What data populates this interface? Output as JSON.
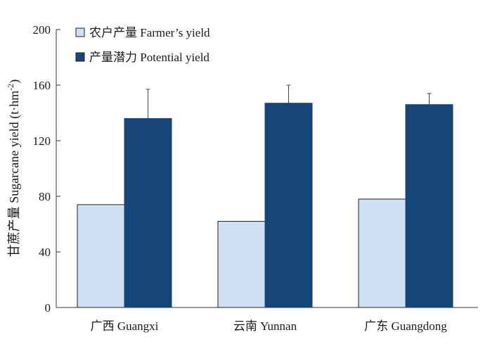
{
  "chart_data": {
    "type": "bar",
    "ylabel": "甘蔗产量 Sugarcane yield (t·hm",
    "ylabel_sup": "-2",
    "ylabel_tail": ")",
    "ylim": [
      0,
      200
    ],
    "yticks": [
      0,
      40,
      80,
      120,
      160,
      200
    ],
    "categories": [
      "广西 Guangxi",
      "云南 Yunnan",
      "广东 Guangdong"
    ],
    "grid": false,
    "legend_position": "top-left",
    "series": [
      {
        "name": "农户产量 Farmer’s yield",
        "values": [
          74,
          62,
          78
        ],
        "errors": [
          null,
          null,
          null
        ],
        "color": "#cfe0f3"
      },
      {
        "name": "产量潜力 Potential yield",
        "values": [
          136,
          147,
          146
        ],
        "errors": [
          21,
          13,
          8
        ],
        "color": "#154677"
      }
    ]
  }
}
